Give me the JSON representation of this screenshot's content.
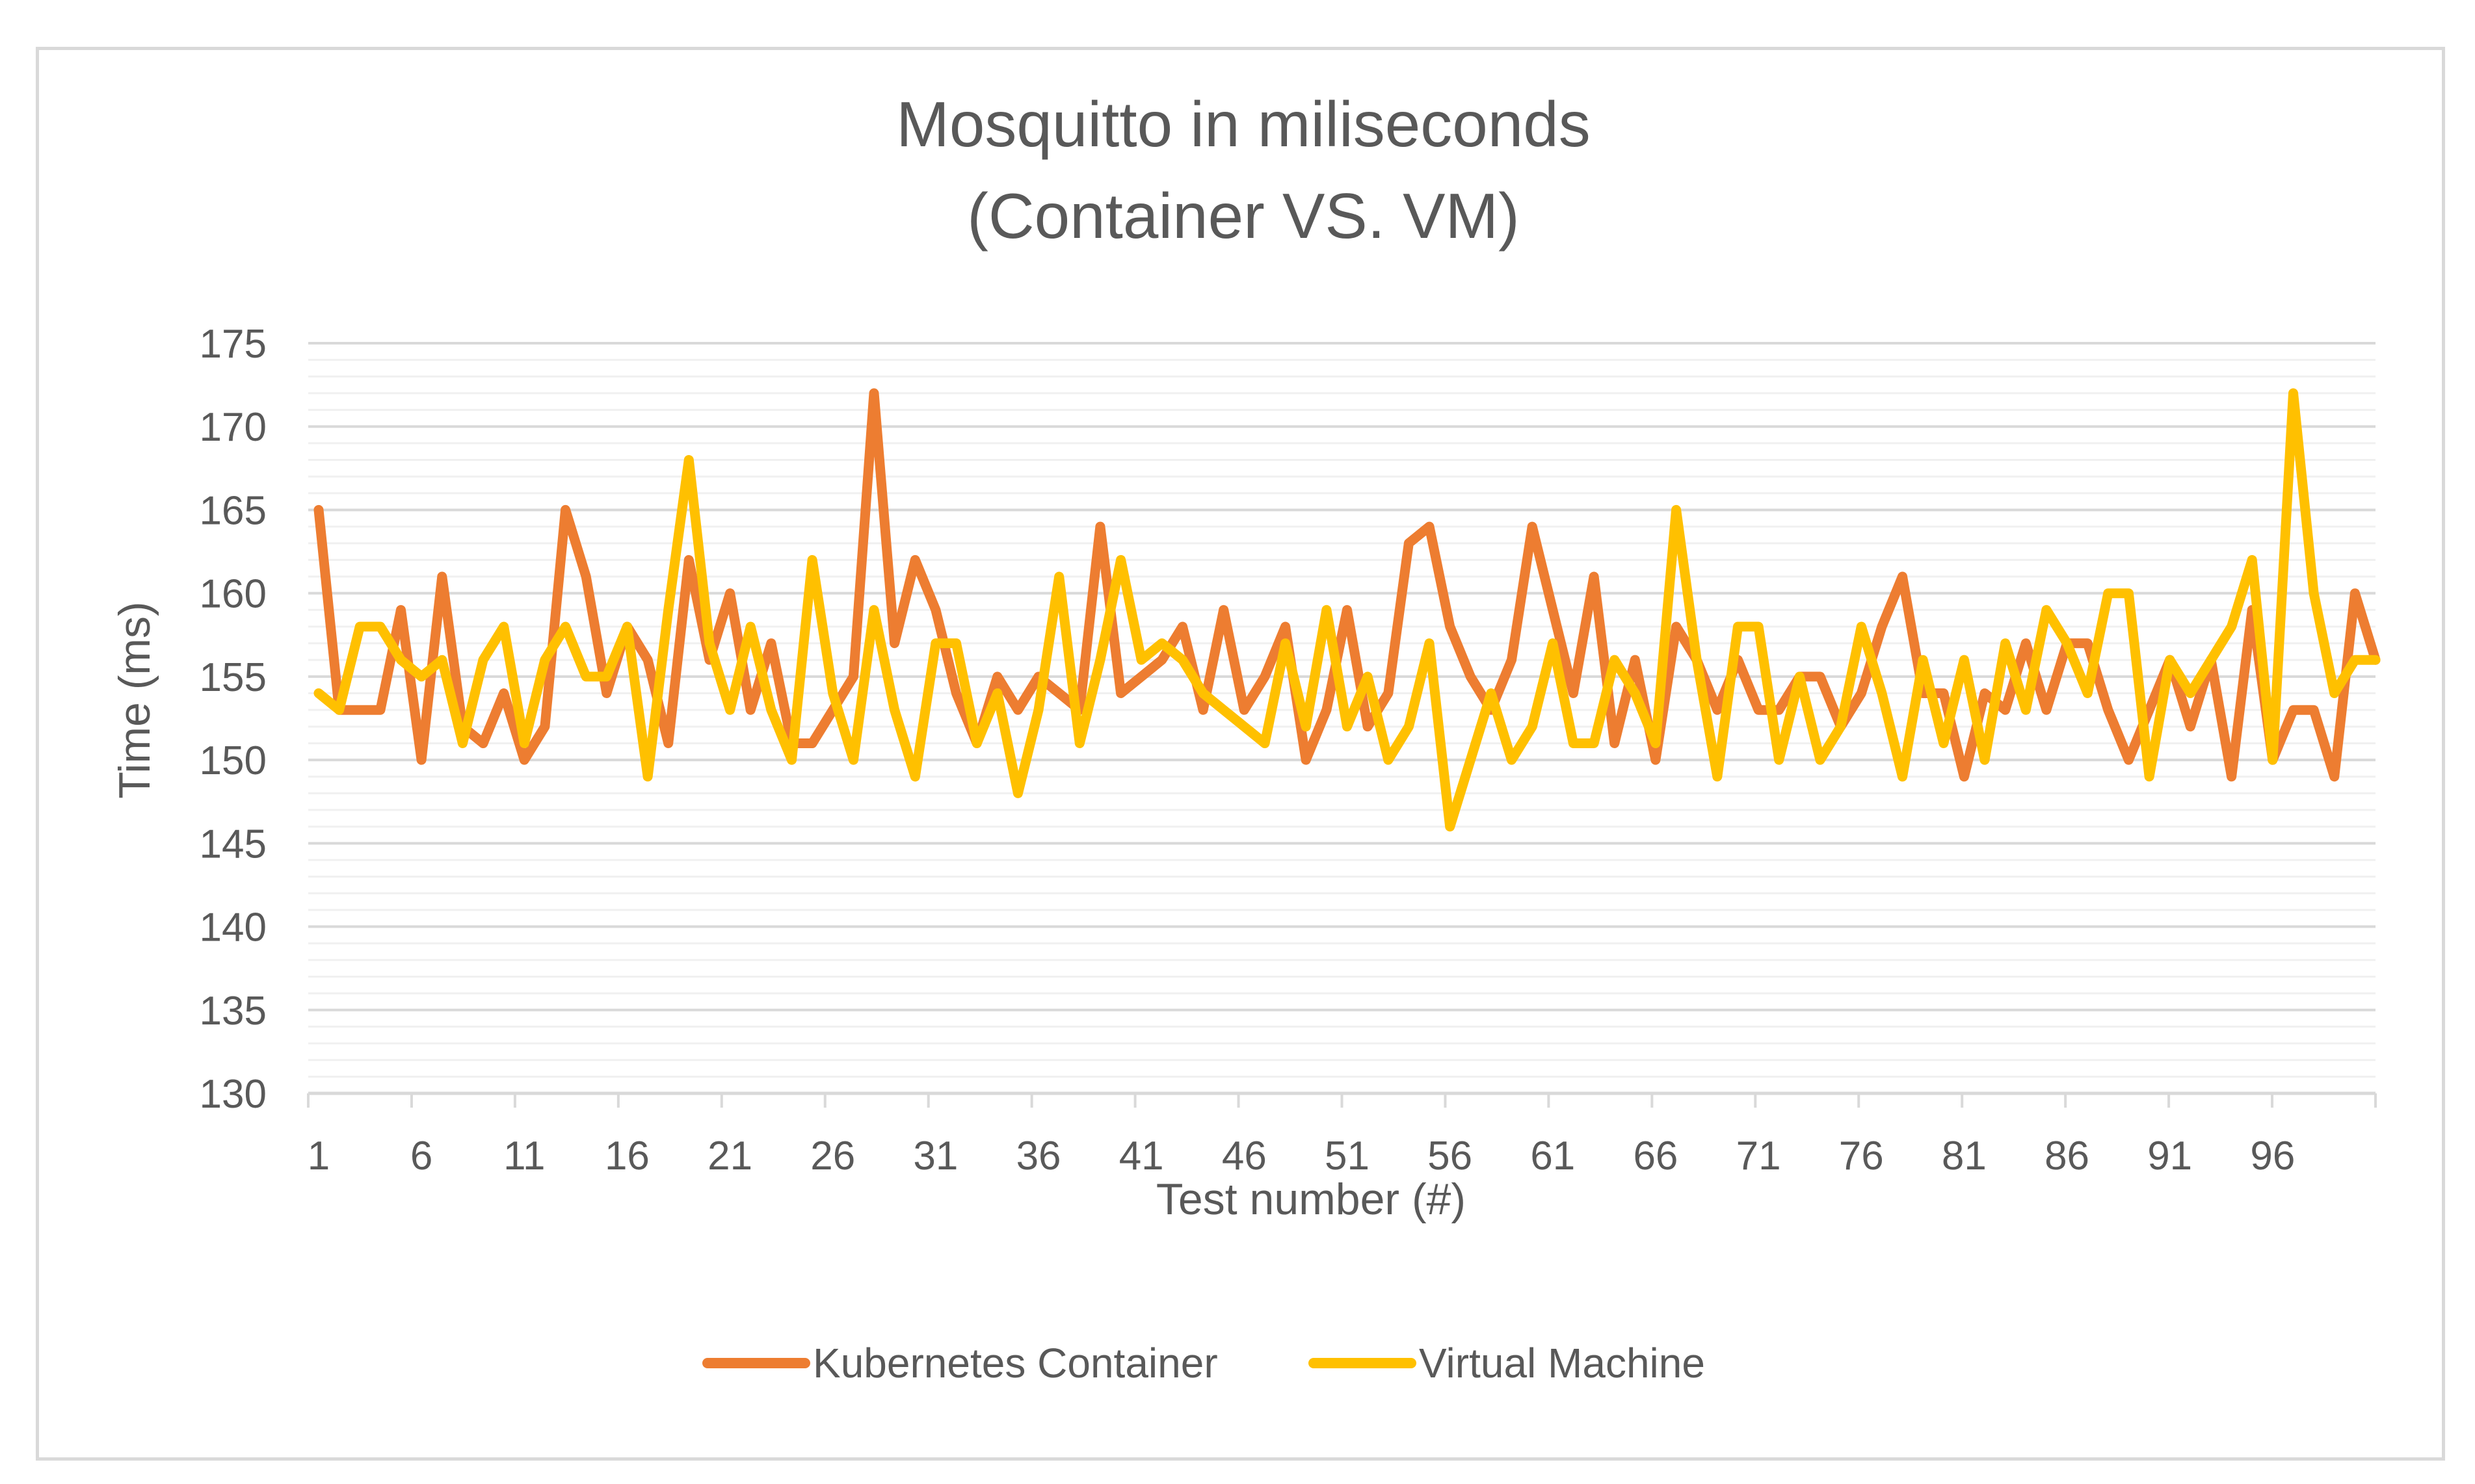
{
  "chart_data": {
    "type": "line",
    "title": [
      "Mosquitto in miliseconds",
      "(Container VS. VM)"
    ],
    "xlabel": "Test number (#)",
    "ylabel": "Time (ms)",
    "ylim": [
      130,
      175
    ],
    "y_major_step": 5,
    "y_minor_step": 1,
    "x_range": [
      1,
      101
    ],
    "x_tick_labels": [
      "1",
      "6",
      "11",
      "16",
      "21",
      "26",
      "31",
      "36",
      "41",
      "46",
      "51",
      "56",
      "61",
      "66",
      "71",
      "76",
      "81",
      "86",
      "91",
      "96"
    ],
    "y_tick_labels": [
      "130",
      "135",
      "140",
      "145",
      "150",
      "155",
      "160",
      "165",
      "170",
      "175"
    ],
    "grid": true,
    "legend_position": "bottom",
    "series": [
      {
        "name": "Kubernetes Container",
        "color": "#ED7D31",
        "values": [
          165,
          153,
          153,
          153,
          159,
          150,
          161,
          152,
          151,
          154,
          150,
          152,
          165,
          161,
          154,
          158,
          156,
          151,
          162,
          156,
          160,
          153,
          157,
          151,
          151,
          153,
          155,
          172,
          157,
          162,
          159,
          154,
          151,
          155,
          153,
          155,
          154,
          153,
          164,
          154,
          155,
          156,
          158,
          153,
          159,
          153,
          155,
          158,
          150,
          153,
          159,
          152,
          154,
          163,
          164,
          158,
          155,
          153,
          156,
          164,
          159,
          154,
          161,
          151,
          156,
          150,
          158,
          156,
          153,
          156,
          153,
          153,
          155,
          155,
          152,
          154,
          158,
          161,
          154,
          154,
          149,
          154,
          153,
          157,
          153,
          157,
          157,
          153,
          150,
          153,
          156,
          152,
          156,
          149,
          159,
          150,
          153,
          153,
          149,
          160,
          156
        ]
      },
      {
        "name": "Virtual Machine",
        "color": "#FFC000",
        "values": [
          154,
          153,
          158,
          158,
          156,
          155,
          156,
          151,
          156,
          158,
          151,
          156,
          158,
          155,
          155,
          158,
          149,
          159,
          168,
          157,
          153,
          158,
          153,
          150,
          162,
          154,
          150,
          159,
          153,
          149,
          157,
          157,
          151,
          154,
          148,
          153,
          161,
          151,
          156,
          162,
          156,
          157,
          156,
          154,
          153,
          152,
          151,
          157,
          152,
          159,
          152,
          155,
          150,
          152,
          157,
          146,
          150,
          154,
          150,
          152,
          157,
          151,
          151,
          156,
          154,
          151,
          165,
          156,
          149,
          158,
          158,
          150,
          155,
          150,
          152,
          158,
          154,
          149,
          156,
          151,
          156,
          150,
          157,
          153,
          159,
          157,
          154,
          160,
          160,
          149,
          156,
          154,
          156,
          158,
          162,
          150,
          172,
          160,
          154,
          156,
          156
        ]
      }
    ]
  }
}
